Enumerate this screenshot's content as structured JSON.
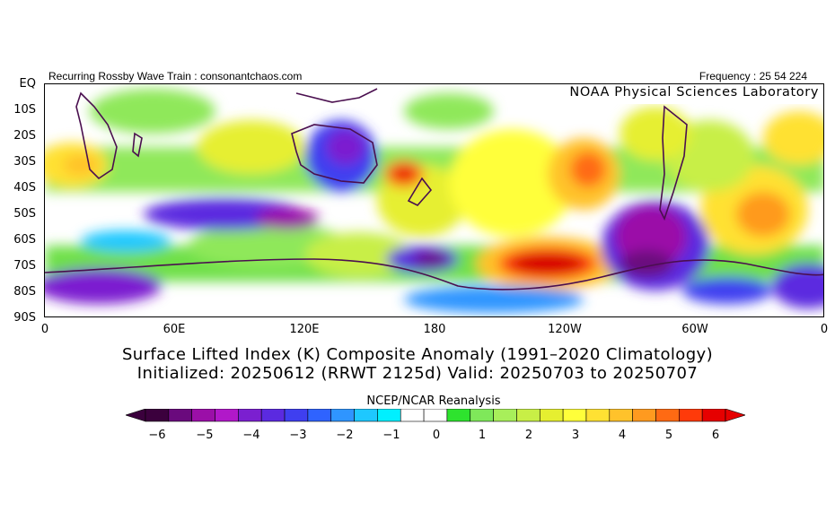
{
  "header": {
    "left_text": "Recurring Rossby Wave Train : consonantchaos.com",
    "right_text": "Frequency : 25 54 224",
    "lab_label": "NOAA Physical Sciences Laboratory"
  },
  "map": {
    "lat_labels": [
      "EQ",
      "10S",
      "20S",
      "30S",
      "40S",
      "50S",
      "60S",
      "70S",
      "80S",
      "90S"
    ],
    "lon_labels": [
      "0",
      "60E",
      "120E",
      "180",
      "120W",
      "60W",
      "0"
    ],
    "projection": "cylindrical equidistant, 0 to 360 longitude, EQ to 90S",
    "anomaly_regions": [
      {
        "area": "southwest Pacific near New Zealand",
        "value": "5 to 6"
      },
      {
        "area": "south-central Pacific 120W-140W 65S-70S",
        "value": "6"
      },
      {
        "area": "southeast Pacific 120W 30S-40S",
        "value": "4 to 5"
      },
      {
        "area": "southern Atlantic 30W 45S-55S",
        "value": "4"
      },
      {
        "area": "Australia interior",
        "value": "-3 to -4"
      },
      {
        "area": "southern Indian Ocean 40E-120E 50S-60S",
        "value": "-3 to -4"
      },
      {
        "area": "Amundsen/Bellingshausen Sea 60W-100W 50S-70S",
        "value": "-4 to -6"
      },
      {
        "area": "Ross Sea 180 65S-70S",
        "value": "-4 to -5"
      }
    ]
  },
  "titles": {
    "line1": "Surface Lifted Index (K) Composite Anomaly (1991–2020 Climatology)",
    "line2": "Initialized: 20250612 (RRWT 2125d) Valid: 20250703 to 20250707",
    "source": "NCEP/NCAR Reanalysis"
  },
  "colorbar": {
    "ticks": [
      "−6",
      "−5",
      "−4",
      "−3",
      "−2",
      "−1",
      "0",
      "1",
      "2",
      "3",
      "4",
      "5",
      "6"
    ],
    "colors": [
      "#3b003d",
      "#6a0a7d",
      "#9b0fa8",
      "#b118c9",
      "#7b1fd0",
      "#5b2ae0",
      "#3f3ff0",
      "#2f63ff",
      "#2f95ff",
      "#1ec8ff",
      "#00f0ff",
      "#ffffff",
      "#ffffff",
      "#2ee32e",
      "#7fe85a",
      "#a8ef5a",
      "#c8ef46",
      "#e6ef30",
      "#ffff3a",
      "#ffe133",
      "#ffc22b",
      "#ff9a1f",
      "#ff6a13",
      "#ff3a0a",
      "#e60000"
    ],
    "low_arrow_color": "#3b003d",
    "high_arrow_color": "#e60000"
  }
}
